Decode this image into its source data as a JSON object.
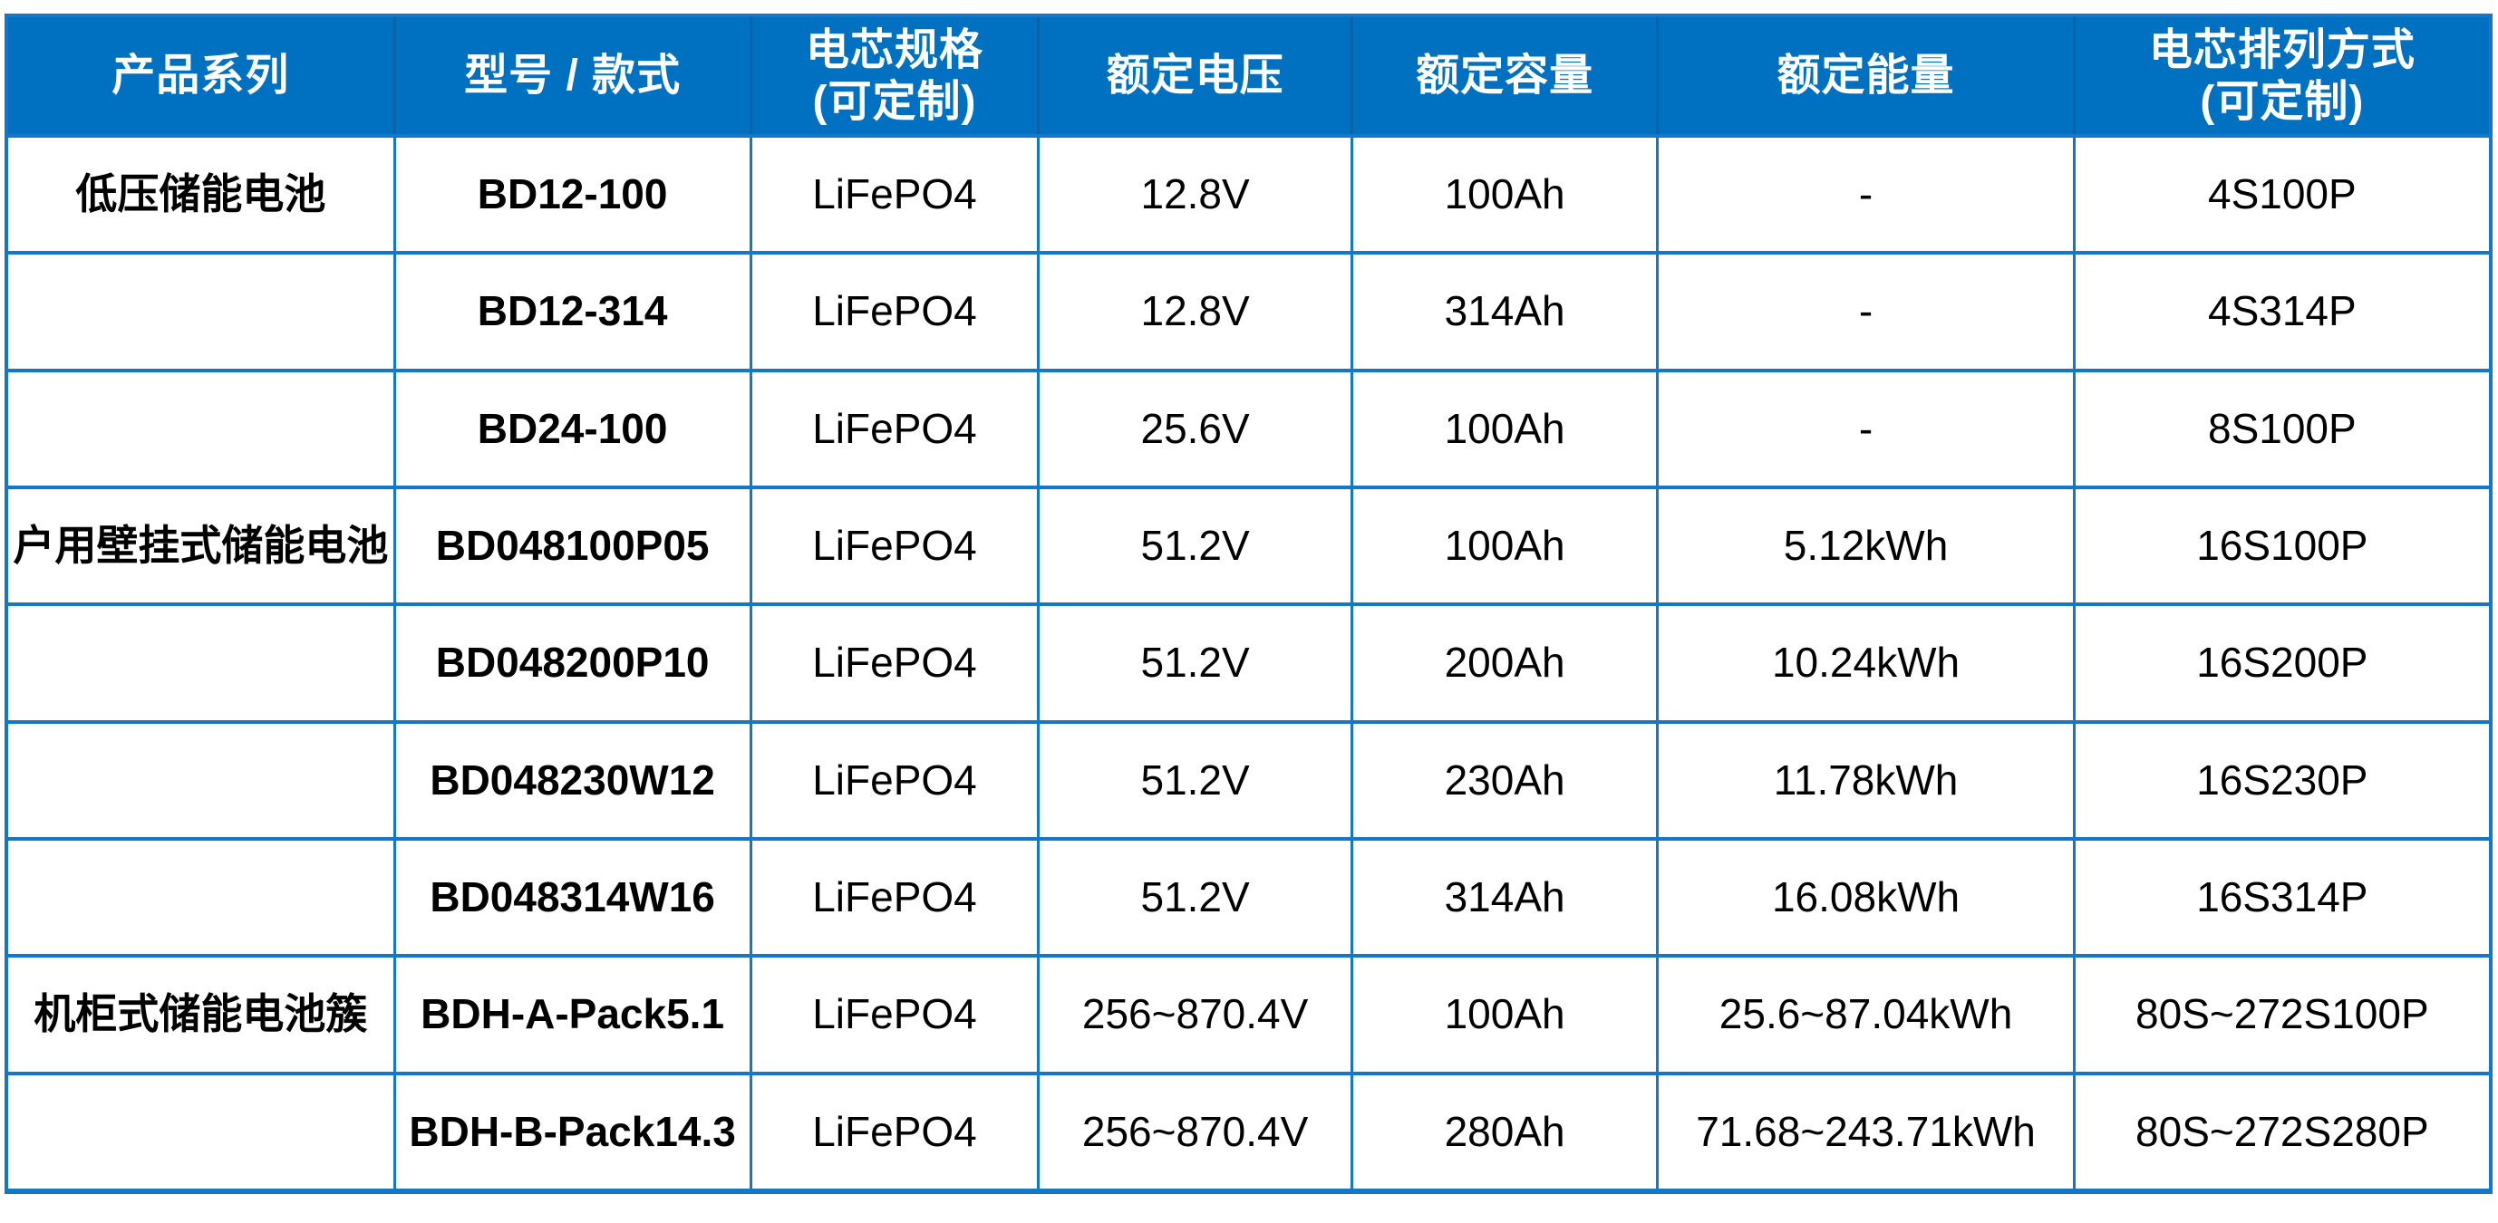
{
  "chart_data": {
    "type": "table",
    "columns": [
      {
        "label": "产品系列",
        "sub": ""
      },
      {
        "label": "型号 / 款式",
        "sub": ""
      },
      {
        "label": "电芯规格",
        "sub": "(可定制)"
      },
      {
        "label": "额定电压",
        "sub": ""
      },
      {
        "label": "额定容量",
        "sub": ""
      },
      {
        "label": "额定能量",
        "sub": ""
      },
      {
        "label": "电芯排列方式",
        "sub": "(可定制)"
      }
    ],
    "rows": [
      [
        "低压储能电池",
        "BD12-100",
        "LiFePO4",
        "12.8V",
        "100Ah",
        "-",
        "4S100P"
      ],
      [
        "",
        "BD12-314",
        "LiFePO4",
        "12.8V",
        "314Ah",
        "-",
        "4S314P"
      ],
      [
        "",
        "BD24-100",
        "LiFePO4",
        "25.6V",
        "100Ah",
        "-",
        "8S100P"
      ],
      [
        "户用壁挂式储能电池",
        "BD048100P05",
        "LiFePO4",
        "51.2V",
        "100Ah",
        "5.12kWh",
        "16S100P"
      ],
      [
        "",
        "BD048200P10",
        "LiFePO4",
        "51.2V",
        "200Ah",
        "10.24kWh",
        "16S200P"
      ],
      [
        "",
        "BD048230W12",
        "LiFePO4",
        "51.2V",
        "230Ah",
        "11.78kWh",
        "16S230P"
      ],
      [
        "",
        "BD048314W16",
        "LiFePO4",
        "51.2V",
        "314Ah",
        "16.08kWh",
        "16S314P"
      ],
      [
        "机柜式储能电池簇",
        "BDH-A-Pack5.1",
        "LiFePO4",
        "256~870.4V",
        "100Ah",
        "25.6~87.04kWh",
        "80S~272S100P"
      ],
      [
        "",
        "BDH-B-Pack14.3",
        "LiFePO4",
        "256~870.4V",
        "280Ah",
        "71.68~243.71kWh",
        "80S~272S280P"
      ]
    ],
    "colors": {
      "header_background": "#0070c0",
      "header_text": "#ffffff",
      "grid_line": "#1577c9",
      "header_divider": "#0a63a9",
      "body_text": "#000000",
      "body_background": "#ffffff"
    }
  }
}
